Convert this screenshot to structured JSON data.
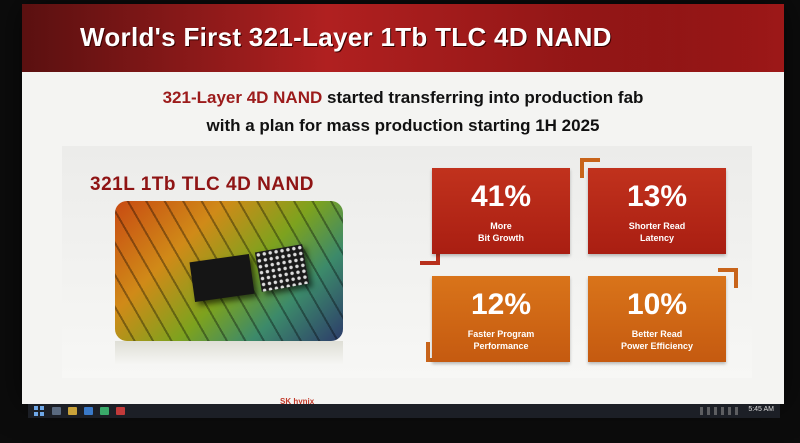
{
  "slide": {
    "title": "World's First 321-Layer 1Tb TLC 4D NAND",
    "subtitle_line1_highlight": "321-Layer 4D NAND",
    "subtitle_line1_rest": " started transferring into production fab",
    "subtitle_line2": "with a plan for mass production starting 1H 2025",
    "product_name": "321L 1Tb TLC 4D NAND",
    "footer_logo": "SK hynix",
    "stats": [
      {
        "value": "41%",
        "label_line1": "More",
        "label_line2": "Bit Growth"
      },
      {
        "value": "13%",
        "label_line1": "Shorter Read",
        "label_line2": "Latency"
      },
      {
        "value": "12%",
        "label_line1": "Faster Program",
        "label_line2": "Performance"
      },
      {
        "value": "10%",
        "label_line1": "Better Read",
        "label_line2": "Power Efficiency"
      }
    ]
  },
  "colors": {
    "title_bar": "#b02020",
    "accent_red": "#9c1b1b",
    "tile_red": "#b8281a",
    "tile_orange": "#d06a16"
  },
  "taskbar": {
    "icons": [
      "windows-start-icon",
      "task-view-icon",
      "folder-icon",
      "browser-icon",
      "app-icon",
      "app-icon"
    ],
    "clock": "5:45 AM"
  }
}
